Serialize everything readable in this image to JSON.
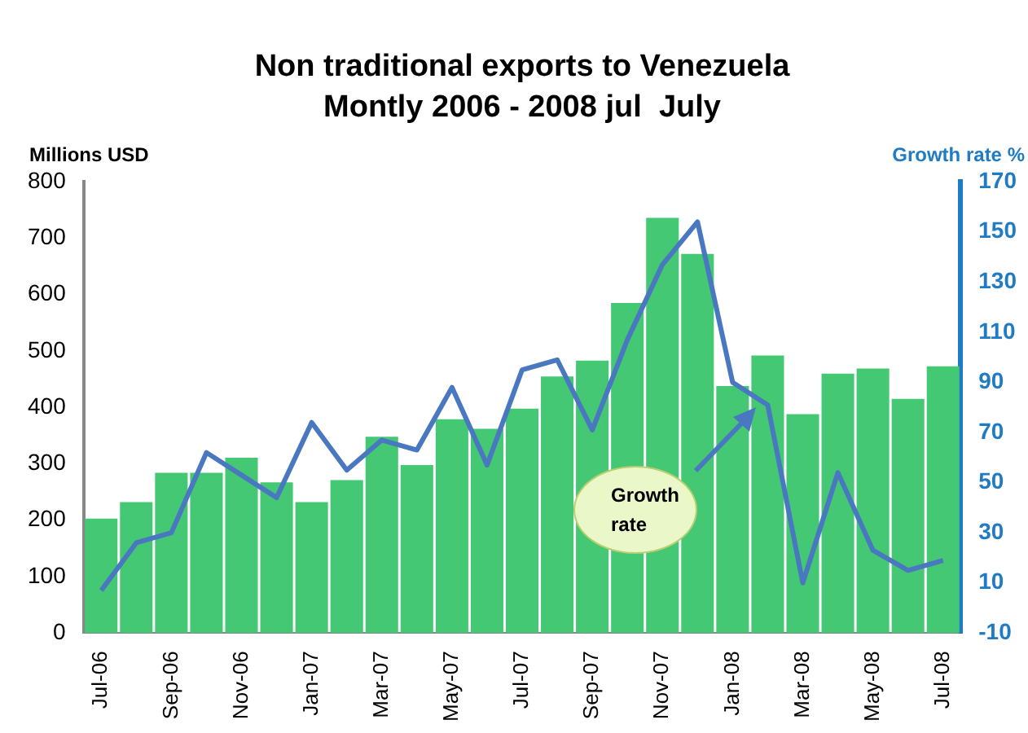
{
  "chart_data": {
    "type": "bar",
    "title": "Non traditional exports to Venezuela",
    "subtitle": "Montly 2006 - 2008 jul  July",
    "ylabel": "Millions USD",
    "y2label": "Growth rate %",
    "categories": [
      "Jul-06",
      null,
      "Sep-06",
      null,
      "Nov-06",
      null,
      "Jan-07",
      null,
      "Mar-07",
      null,
      "May-07",
      null,
      "Jul-07",
      null,
      "Sep-07",
      null,
      "Nov-07",
      null,
      "Jan-08",
      null,
      "Mar-08",
      null,
      "May-08",
      null,
      "Jul-08"
    ],
    "series": [
      {
        "color": "#45c873",
        "values": [
          203,
          232,
          284,
          284,
          311,
          267,
          232,
          271,
          348,
          298,
          379,
          362,
          398,
          455,
          483,
          585,
          736,
          672,
          438,
          492,
          388,
          460,
          469,
          415,
          473
        ]
      },
      {
        "type": "line",
        "name": "Growth rate",
        "axis": "y2",
        "color": "#4a78c0",
        "values": [
          7,
          26,
          30,
          62,
          53,
          44,
          74,
          55,
          67,
          63,
          88,
          57,
          95,
          99,
          71,
          107,
          137,
          154,
          90,
          81,
          10,
          54,
          23,
          15,
          19
        ]
      }
    ],
    "ylim": [
      0,
      800
    ],
    "yticks": [
      0,
      100,
      200,
      300,
      400,
      500,
      600,
      700,
      800
    ],
    "y2lim": [
      -10,
      170
    ],
    "y2ticks": [
      -10,
      10,
      30,
      50,
      70,
      90,
      110,
      130,
      150,
      170
    ],
    "grid": false,
    "legend": false,
    "marker": "none",
    "line_style": "solid"
  }
}
